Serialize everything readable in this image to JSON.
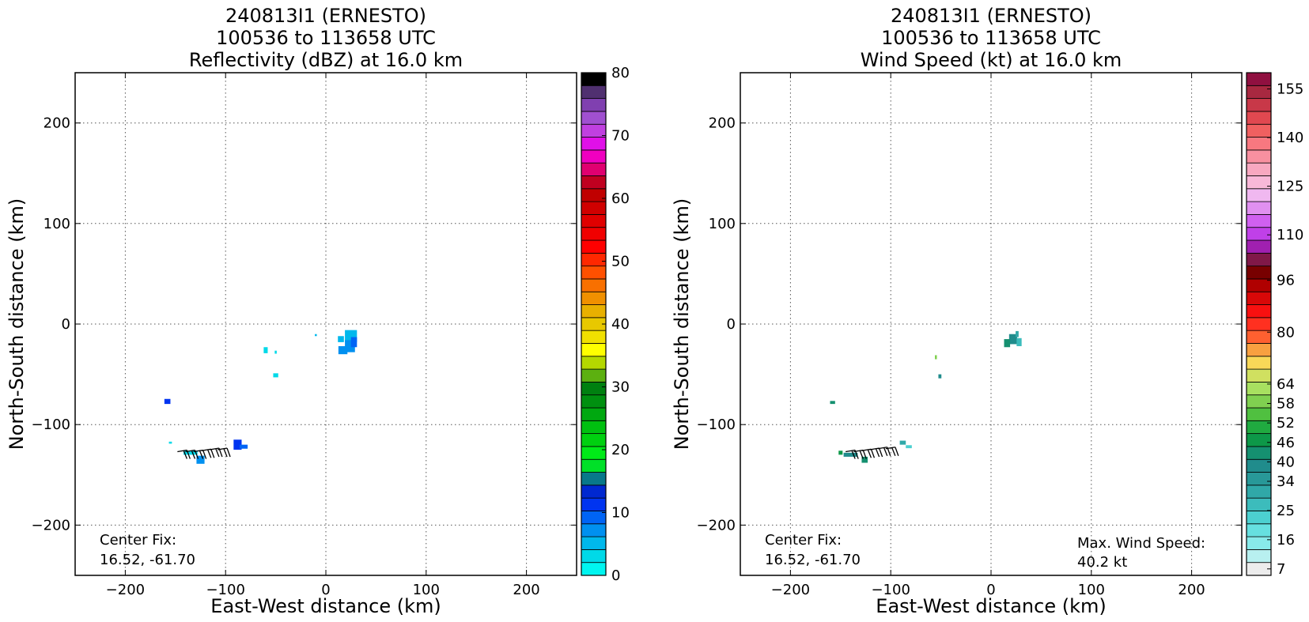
{
  "chart_data": [
    {
      "type": "heatmap",
      "title_lines": [
        "240813I1 (ERNESTO)",
        "100536 to 113658 UTC",
        "Reflectivity (dBZ) at 16.0 km"
      ],
      "xlabel": "East-West distance (km)",
      "ylabel": "North-South distance (km)",
      "xlim": [
        -250,
        250
      ],
      "ylim": [
        -250,
        250
      ],
      "xticks": [
        -200,
        -100,
        0,
        100,
        200
      ],
      "yticks": [
        -200,
        -100,
        0,
        100,
        200
      ],
      "xtick_labels": [
        "−200",
        "−100",
        "0",
        "100",
        "200"
      ],
      "ytick_labels": [
        "−200",
        "−100",
        "0",
        "100",
        "200"
      ],
      "grid": true,
      "annotations": [
        {
          "line1": "Center Fix:",
          "line2": "16.52, -61.70"
        }
      ],
      "colorbar": {
        "min": 0,
        "max": 80,
        "tick_values": [
          0,
          10,
          20,
          30,
          40,
          50,
          60,
          70,
          80
        ],
        "tick_labels": [
          "0",
          "10",
          "20",
          "30",
          "40",
          "50",
          "60",
          "70",
          "80"
        ],
        "colors": [
          "#00f5f0",
          "#00d9e8",
          "#00b8ec",
          "#0090f0",
          "#0064f5",
          "#0034f0",
          "#0028d0",
          "#08788a",
          "#00e028",
          "#00ea18",
          "#00d010",
          "#00c010",
          "#00a810",
          "#009010",
          "#008010",
          "#5cb010",
          "#b4d800",
          "#ffff00",
          "#f0e000",
          "#e8c800",
          "#e8b000",
          "#f09000",
          "#f87000",
          "#ff5000",
          "#ff2800",
          "#ff0000",
          "#f00000",
          "#e00000",
          "#d00000",
          "#c00000",
          "#c00020",
          "#e00070",
          "#f000c0",
          "#e010e8",
          "#c040e0",
          "#a050d0",
          "#8040b0",
          "#503070",
          "#000000"
        ]
      },
      "cells": [
        {
          "x": 25,
          "y": -12,
          "w": 12,
          "h": 12,
          "c": "#00b8ec"
        },
        {
          "x": 24,
          "y": -22,
          "w": 10,
          "h": 12,
          "c": "#0090f0"
        },
        {
          "x": 28,
          "y": -18,
          "w": 6,
          "h": 10,
          "c": "#0064f5"
        },
        {
          "x": 17,
          "y": -26,
          "w": 9,
          "h": 8,
          "c": "#0090f0"
        },
        {
          "x": 15,
          "y": -15,
          "w": 6,
          "h": 6,
          "c": "#00b8ec"
        },
        {
          "x": -60,
          "y": -26,
          "w": 4,
          "h": 6,
          "c": "#00d9e8"
        },
        {
          "x": -50,
          "y": -28,
          "w": 2,
          "h": 3,
          "c": "#00d9e8"
        },
        {
          "x": -50,
          "y": -51,
          "w": 5,
          "h": 4,
          "c": "#00d9e8"
        },
        {
          "x": -10,
          "y": -11,
          "w": 2,
          "h": 2,
          "c": "#00b8ec"
        },
        {
          "x": -158,
          "y": -77,
          "w": 6,
          "h": 5,
          "c": "#0034f0"
        },
        {
          "x": -88,
          "y": -120,
          "w": 8,
          "h": 10,
          "c": "#0034f0"
        },
        {
          "x": -82,
          "y": -122,
          "w": 8,
          "h": 4,
          "c": "#0064f5"
        },
        {
          "x": -135,
          "y": -128,
          "w": 14,
          "h": 4,
          "c": "#00d9e8"
        },
        {
          "x": -125,
          "y": -135,
          "w": 8,
          "h": 8,
          "c": "#0090f0"
        },
        {
          "x": -155,
          "y": -118,
          "w": 3,
          "h": 2,
          "c": "#00d9e8"
        }
      ],
      "barbs": [
        {
          "x": -148,
          "y": -127
        },
        {
          "x": -140,
          "y": -127
        },
        {
          "x": -132,
          "y": -127
        },
        {
          "x": -124,
          "y": -126
        },
        {
          "x": -116,
          "y": -125
        },
        {
          "x": -108,
          "y": -125
        }
      ]
    },
    {
      "type": "heatmap",
      "title_lines": [
        "240813I1 (ERNESTO)",
        "100536 to 113658 UTC",
        "Wind Speed (kt) at 16.0 km"
      ],
      "xlabel": "East-West distance (km)",
      "ylabel": "North-South distance (km)",
      "xlim": [
        -250,
        250
      ],
      "ylim": [
        -250,
        250
      ],
      "xticks": [
        -200,
        -100,
        0,
        100,
        200
      ],
      "yticks": [
        -200,
        -100,
        0,
        100,
        200
      ],
      "xtick_labels": [
        "−200",
        "−100",
        "0",
        "100",
        "200"
      ],
      "ytick_labels": [
        "−200",
        "−100",
        "0",
        "100",
        "200"
      ],
      "grid": true,
      "annotations": [
        {
          "line1": "Center Fix:",
          "line2": "16.52, -61.70"
        },
        {
          "line1": "Max. Wind Speed:",
          "line2": "40.2 kt"
        }
      ],
      "colorbar": {
        "min": 5,
        "max": 160,
        "tick_values": [
          7,
          16,
          25,
          34,
          40,
          46,
          52,
          58,
          64,
          80,
          96,
          110,
          125,
          140,
          155
        ],
        "tick_labels": [
          "7",
          "16",
          "25",
          "34",
          "40",
          "46",
          "52",
          "58",
          "64",
          "80",
          "96",
          "110",
          "125",
          "140",
          "155"
        ],
        "colors": [
          "#ececec",
          "#b8f0f0",
          "#88eaea",
          "#66e0e0",
          "#4cd0d0",
          "#3cbcbc",
          "#30a8a8",
          "#289898",
          "#208c8c",
          "#159070",
          "#0d9848",
          "#20aa40",
          "#50c040",
          "#80d050",
          "#a8e060",
          "#d0e060",
          "#f8d858",
          "#f8a040",
          "#ff6030",
          "#ff3020",
          "#f81010",
          "#d80808",
          "#b00000",
          "#780000",
          "#801848",
          "#a020b0",
          "#c040e8",
          "#d060f0",
          "#e090f0",
          "#f0b8f0",
          "#f8b8d8",
          "#f8a8c0",
          "#f890a0",
          "#f87880",
          "#f06060",
          "#e04850",
          "#c83848",
          "#a82840",
          "#901040"
        ]
      },
      "cells": [
        {
          "x": 22,
          "y": -15,
          "w": 8,
          "h": 10,
          "c": "#208c8c"
        },
        {
          "x": 28,
          "y": -18,
          "w": 5,
          "h": 8,
          "c": "#3cbcbc"
        },
        {
          "x": 16,
          "y": -19,
          "w": 6,
          "h": 8,
          "c": "#159070"
        },
        {
          "x": 26,
          "y": -10,
          "w": 3,
          "h": 6,
          "c": "#30a8a8"
        },
        {
          "x": -55,
          "y": -33,
          "w": 2,
          "h": 4,
          "c": "#80d050"
        },
        {
          "x": -51,
          "y": -52,
          "w": 3,
          "h": 4,
          "c": "#208c8c"
        },
        {
          "x": -158,
          "y": -78,
          "w": 5,
          "h": 3,
          "c": "#159070"
        },
        {
          "x": -88,
          "y": -118,
          "w": 6,
          "h": 4,
          "c": "#30a8a8"
        },
        {
          "x": -82,
          "y": -122,
          "w": 6,
          "h": 3,
          "c": "#4cd0d0"
        },
        {
          "x": -140,
          "y": -130,
          "w": 14,
          "h": 4,
          "c": "#208c8c"
        },
        {
          "x": -126,
          "y": -135,
          "w": 6,
          "h": 6,
          "c": "#159070"
        },
        {
          "x": -150,
          "y": -128,
          "w": 4,
          "h": 4,
          "c": "#0d9848"
        }
      ],
      "barbs": [
        {
          "x": -145,
          "y": -127
        },
        {
          "x": -137,
          "y": -127
        },
        {
          "x": -129,
          "y": -126
        },
        {
          "x": -121,
          "y": -125
        },
        {
          "x": -113,
          "y": -124
        },
        {
          "x": -105,
          "y": -124
        }
      ]
    }
  ]
}
